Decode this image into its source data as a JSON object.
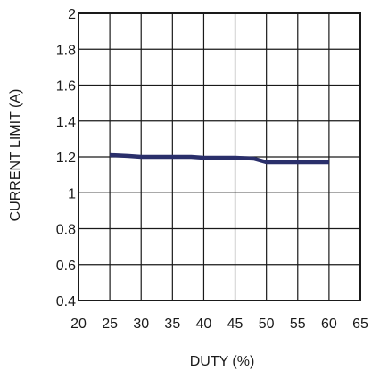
{
  "chart_data": {
    "type": "line",
    "xlabel": "DUTY (%)",
    "ylabel": "CURRENT LIMIT (A)",
    "xlim": [
      20,
      65
    ],
    "ylim": [
      0.4,
      2
    ],
    "x_ticks": [
      20,
      25,
      30,
      35,
      40,
      45,
      50,
      55,
      60,
      65
    ],
    "y_ticks": [
      0.4,
      0.6,
      0.8,
      1,
      1.2,
      1.4,
      1.6,
      1.8,
      2
    ],
    "x_tick_labels": [
      "20",
      "25",
      "30",
      "35",
      "40",
      "45",
      "50",
      "55",
      "60",
      "65"
    ],
    "y_tick_labels": [
      "0.4",
      "0.6",
      "0.8",
      "1",
      "1.2",
      "1.4",
      "1.6",
      "1.8",
      "2"
    ],
    "grid": true,
    "series": [
      {
        "color": "#2a2f6b",
        "x": [
          25,
          28,
          30,
          33,
          35,
          38,
          40,
          43,
          45,
          48,
          50,
          53,
          55,
          58,
          60
        ],
        "y": [
          1.21,
          1.205,
          1.2,
          1.2,
          1.2,
          1.2,
          1.195,
          1.195,
          1.195,
          1.19,
          1.17,
          1.17,
          1.17,
          1.17,
          1.17
        ]
      }
    ]
  }
}
